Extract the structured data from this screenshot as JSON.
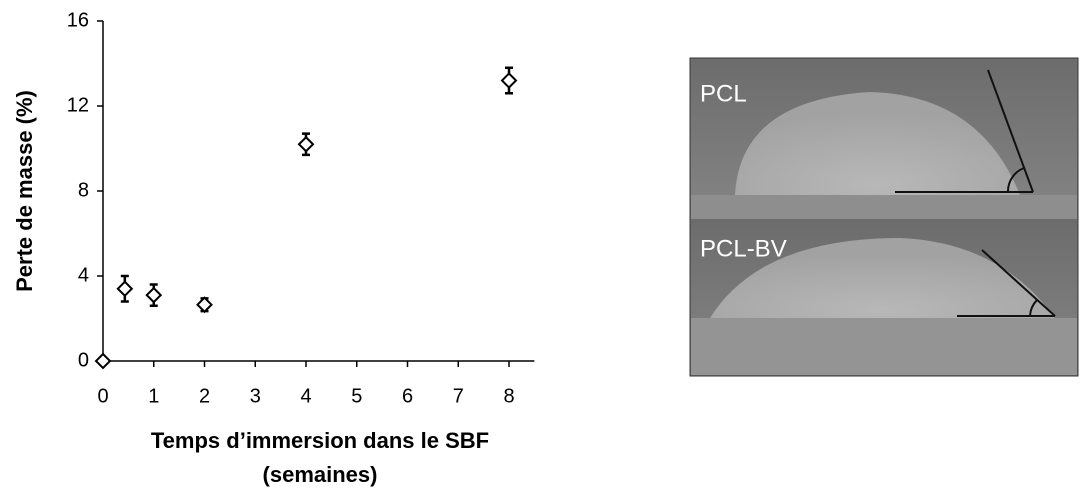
{
  "chart_data": {
    "type": "scatter",
    "x_label": [
      "Temps d’immersion dans le SBF",
      "(semaines)"
    ],
    "y_label": "Perte de masse (%)",
    "x": [
      0,
      0.43,
      1,
      2,
      4,
      8
    ],
    "series": [
      {
        "color": "#000000",
        "values": [
          0,
          3.4,
          3.1,
          2.65,
          10.2,
          13.2
        ],
        "errors": [
          0,
          0.6,
          0.5,
          0.3,
          0.5,
          0.6
        ]
      }
    ],
    "xlim": [
      0,
      8.5
    ],
    "xticks": [
      0,
      1,
      2,
      3,
      4,
      5,
      6,
      7,
      8
    ],
    "ylim": [
      0,
      16
    ],
    "yticks": [
      0,
      4,
      8,
      12,
      16
    ]
  },
  "photo_panels": [
    "PCL",
    "PCL-BV"
  ]
}
